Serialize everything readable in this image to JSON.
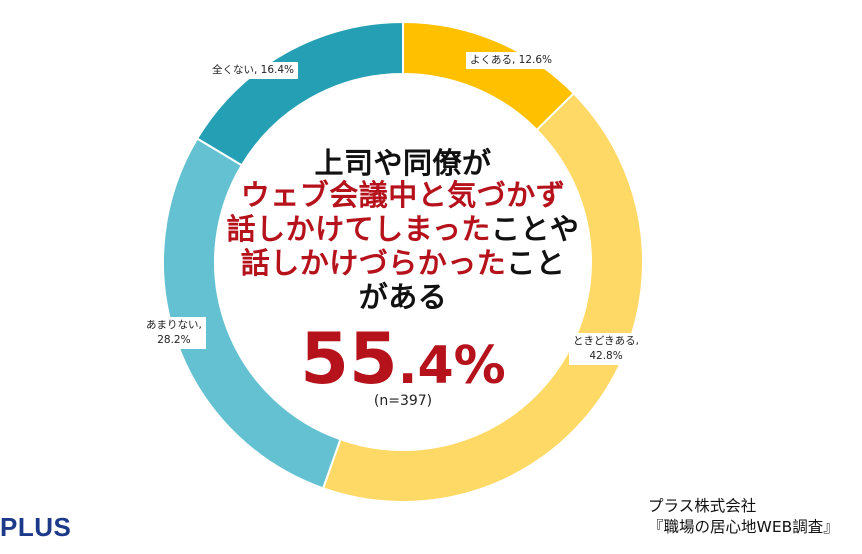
{
  "chart_data": {
    "type": "pie",
    "variant": "donut",
    "n_label": "(n=397)",
    "slices": [
      {
        "name": "よくある",
        "value": 12.6,
        "label_line1": "よくある, 12.6%",
        "label_line2": "",
        "color": "#ffc000"
      },
      {
        "name": "ときどきある",
        "value": 42.8,
        "label_line1": "ときどきある,",
        "label_line2": "42.8%",
        "color": "#ffd966"
      },
      {
        "name": "あまりない",
        "value": 28.2,
        "label_line1": "あまりない,",
        "label_line2": "28.2%",
        "color": "#64c1d2"
      },
      {
        "name": "全くない",
        "value": 16.4,
        "label_line1": "全くない, 16.4%",
        "label_line2": "",
        "color": "#249fb3"
      }
    ]
  },
  "headline": {
    "line1": "上司や同僚が",
    "line2": "ウェブ会議中と気づかず",
    "line3_red": "話しかけてしまった",
    "line3_black": "ことや",
    "line4_red": "話しかけづらかった",
    "line4_black": "こと",
    "line5": "がある",
    "percent_int": "55",
    "percent_dec": ".4%"
  },
  "colors": {
    "accent": "#b5121b",
    "brand": "#1d3a8a"
  },
  "brand": {
    "logo": "PLUS"
  },
  "source": {
    "line1": "プラス株式会社",
    "line2": "『職場の居心地WEB調査』"
  }
}
